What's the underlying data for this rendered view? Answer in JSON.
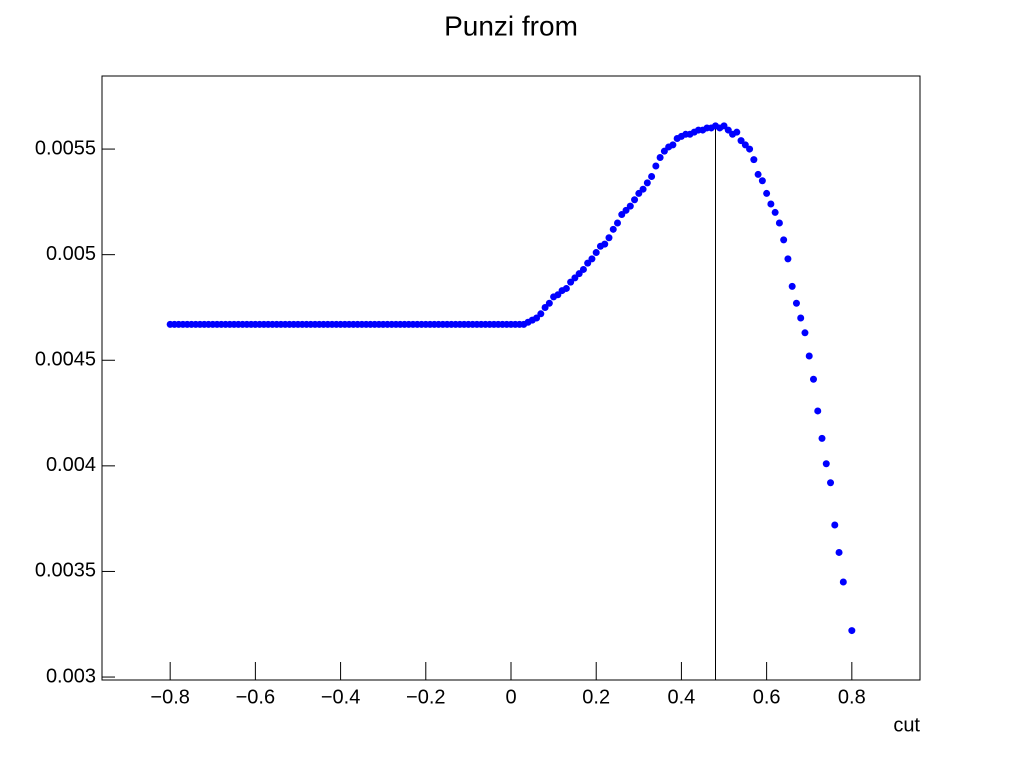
{
  "chart_data": {
    "type": "scatter",
    "title": "Punzi from",
    "x_label": "cut",
    "x": [
      -0.8,
      -0.79,
      -0.78,
      -0.77,
      -0.76,
      -0.75,
      -0.74,
      -0.73,
      -0.72,
      -0.71,
      -0.7,
      -0.69,
      -0.68,
      -0.67,
      -0.66,
      -0.65,
      -0.64,
      -0.63,
      -0.62,
      -0.61,
      -0.6,
      -0.59,
      -0.58,
      -0.57,
      -0.56,
      -0.55,
      -0.54,
      -0.53,
      -0.52,
      -0.51,
      -0.5,
      -0.49,
      -0.48,
      -0.47,
      -0.46,
      -0.45,
      -0.44,
      -0.43,
      -0.42,
      -0.41,
      -0.4,
      -0.39,
      -0.38,
      -0.37,
      -0.36,
      -0.35,
      -0.34,
      -0.33,
      -0.32,
      -0.31,
      -0.3,
      -0.29,
      -0.28,
      -0.27,
      -0.26,
      -0.25,
      -0.24,
      -0.23,
      -0.22,
      -0.21,
      -0.2,
      -0.19,
      -0.18,
      -0.17,
      -0.16,
      -0.15,
      -0.14,
      -0.13,
      -0.12,
      -0.11,
      -0.1,
      -0.09,
      -0.08,
      -0.07,
      -0.06,
      -0.05,
      -0.04,
      -0.03,
      -0.02,
      -0.01,
      0,
      0.01,
      0.02,
      0.03,
      0.04,
      0.05,
      0.06,
      0.07,
      0.08,
      0.09,
      0.1,
      0.11,
      0.12,
      0.13,
      0.14,
      0.15,
      0.16,
      0.17,
      0.18,
      0.19,
      0.2,
      0.21,
      0.22,
      0.23,
      0.24,
      0.25,
      0.26,
      0.27,
      0.28,
      0.29,
      0.3,
      0.31,
      0.32,
      0.33,
      0.34,
      0.35,
      0.36,
      0.37,
      0.38,
      0.39,
      0.4,
      0.41,
      0.42,
      0.43,
      0.44,
      0.45,
      0.46,
      0.47,
      0.48,
      0.49,
      0.5,
      0.51,
      0.52,
      0.53,
      0.54,
      0.55,
      0.56,
      0.57,
      0.58,
      0.59,
      0.6,
      0.61,
      0.62,
      0.63,
      0.64,
      0.65,
      0.66,
      0.67,
      0.68,
      0.69,
      0.7,
      0.71,
      0.72,
      0.73,
      0.74,
      0.75,
      0.76,
      0.77,
      0.78,
      0.8
    ],
    "values": [
      0.00467,
      0.00467,
      0.00467,
      0.00467,
      0.00467,
      0.00467,
      0.00467,
      0.00467,
      0.00467,
      0.00467,
      0.00467,
      0.00467,
      0.00467,
      0.00467,
      0.00467,
      0.00467,
      0.00467,
      0.00467,
      0.00467,
      0.00467,
      0.00467,
      0.00467,
      0.00467,
      0.00467,
      0.00467,
      0.00467,
      0.00467,
      0.00467,
      0.00467,
      0.00467,
      0.00467,
      0.00467,
      0.00467,
      0.00467,
      0.00467,
      0.00467,
      0.00467,
      0.00467,
      0.00467,
      0.00467,
      0.00467,
      0.00467,
      0.00467,
      0.00467,
      0.00467,
      0.00467,
      0.00467,
      0.00467,
      0.00467,
      0.00467,
      0.00467,
      0.00467,
      0.00467,
      0.00467,
      0.00467,
      0.00467,
      0.00467,
      0.00467,
      0.00467,
      0.00467,
      0.00467,
      0.00467,
      0.00467,
      0.00467,
      0.00467,
      0.00467,
      0.00467,
      0.00467,
      0.00467,
      0.00467,
      0.00467,
      0.00467,
      0.00467,
      0.00467,
      0.00467,
      0.00467,
      0.00467,
      0.00467,
      0.00467,
      0.00467,
      0.00467,
      0.00467,
      0.00467,
      0.00467,
      0.00468,
      0.00469,
      0.0047,
      0.00472,
      0.00475,
      0.00477,
      0.0048,
      0.00481,
      0.00483,
      0.00484,
      0.00487,
      0.00489,
      0.00491,
      0.00493,
      0.00496,
      0.00498,
      0.00501,
      0.00504,
      0.00505,
      0.00508,
      0.00512,
      0.00515,
      0.00519,
      0.00521,
      0.00523,
      0.00526,
      0.00529,
      0.00531,
      0.00534,
      0.00537,
      0.00542,
      0.00546,
      0.00549,
      0.00551,
      0.00552,
      0.00555,
      0.00556,
      0.00557,
      0.00557,
      0.00558,
      0.00559,
      0.00559,
      0.0056,
      0.0056,
      0.00561,
      0.0056,
      0.00561,
      0.00559,
      0.00557,
      0.00558,
      0.00554,
      0.00552,
      0.0055,
      0.00545,
      0.00538,
      0.00535,
      0.00529,
      0.00524,
      0.0052,
      0.00515,
      0.00507,
      0.00498,
      0.00485,
      0.00477,
      0.0047,
      0.00463,
      0.00452,
      0.00441,
      0.00426,
      0.00413,
      0.00401,
      0.00392,
      0.00372,
      0.00359,
      0.00345,
      0.00322
    ],
    "color": "#0000ff",
    "marker_line": {
      "x": 0.48,
      "y": 0.00561
    },
    "xlim": [
      -0.96,
      0.96
    ],
    "ylim": [
      0.002986,
      0.005846
    ],
    "xticks": [
      {
        "value": -0.8,
        "label": "−0.8"
      },
      {
        "value": -0.6,
        "label": "−0.6"
      },
      {
        "value": -0.4,
        "label": "−0.4"
      },
      {
        "value": -0.2,
        "label": "−0.2"
      },
      0,
      0.2,
      0.4,
      0.6,
      0.8
    ],
    "yticks": [
      0.003,
      0.0035,
      0.004,
      0.0045,
      0.005,
      0.0055
    ]
  }
}
